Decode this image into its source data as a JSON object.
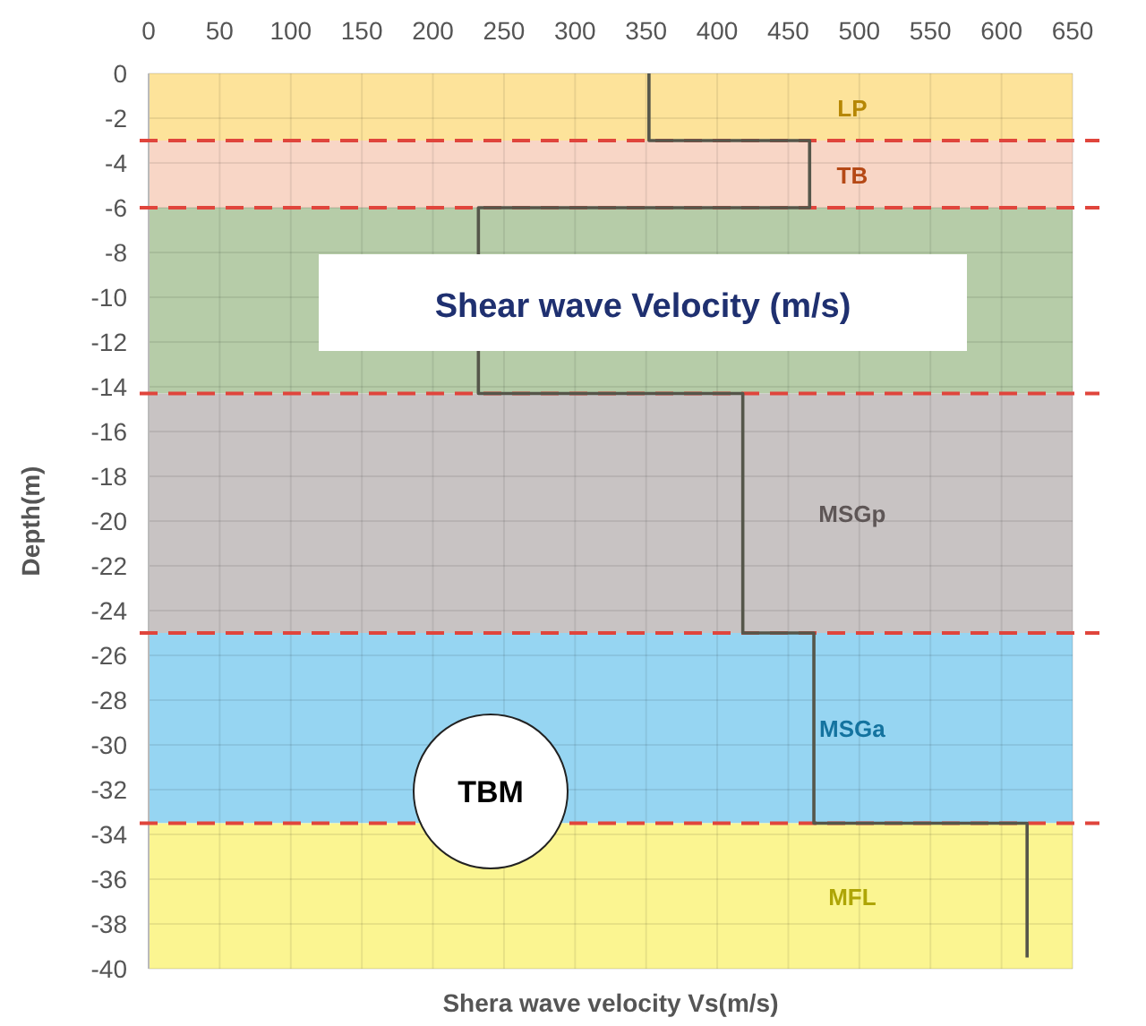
{
  "chart_data": {
    "type": "line",
    "title": "Shear wave Velocity (m/s)",
    "xlabel": "Shera wave velocity Vs(m/s)",
    "ylabel": "Depth(m)",
    "x": [
      352,
      352,
      465,
      465,
      232,
      232,
      418,
      418,
      468,
      468,
      618,
      618
    ],
    "series": [
      {
        "color": "#55564a",
        "values": [
          0,
          -3,
          -3,
          -6,
          -6,
          -14.3,
          -14.3,
          -25,
          -25,
          -33.5,
          -33.5,
          -39.5
        ]
      }
    ],
    "xlim": [
      0,
      650
    ],
    "xticks": [
      0,
      50,
      100,
      150,
      200,
      250,
      300,
      350,
      400,
      450,
      500,
      550,
      600,
      650
    ],
    "ylim": [
      -40,
      0
    ],
    "yticks": [
      0,
      -2,
      -4,
      -6,
      -8,
      -10,
      -12,
      -14,
      -16,
      -18,
      -20,
      -22,
      -24,
      -26,
      -28,
      -30,
      -32,
      -34,
      -36,
      -38,
      -40
    ],
    "grid": true,
    "marker": "none",
    "line_style": "solid",
    "bands": [
      {
        "axis": "y",
        "from": 0,
        "to": -3,
        "label": "LP",
        "color": "#fde39a"
      },
      {
        "axis": "y",
        "from": -3,
        "to": -6,
        "label": "TB",
        "color": "#f8d6c6"
      },
      {
        "axis": "y",
        "from": -6,
        "to": -14.3,
        "color": "#b6cca8"
      },
      {
        "axis": "y",
        "from": -14.3,
        "to": -25,
        "label": "MSGp",
        "color": "#c8c3c3"
      },
      {
        "axis": "y",
        "from": -25,
        "to": -33.5,
        "label": "MSGa",
        "color": "#96d5f2"
      },
      {
        "axis": "y",
        "from": -33.5,
        "to": -40,
        "label": "MFL",
        "color": "#fbf591"
      }
    ],
    "ref_lines": [
      {
        "axis": "y",
        "value": -3,
        "color": "#e0453c",
        "line_style": "dashed"
      },
      {
        "axis": "y",
        "value": -6,
        "color": "#e0453c",
        "line_style": "dashed"
      },
      {
        "axis": "y",
        "value": -14.3,
        "color": "#e0453c",
        "line_style": "dashed"
      },
      {
        "axis": "y",
        "value": -25,
        "color": "#e0453c",
        "line_style": "dashed"
      },
      {
        "axis": "y",
        "value": -33.5,
        "color": "#e0453c",
        "line_style": "dashed"
      }
    ],
    "annotations": [
      "TBM"
    ]
  }
}
